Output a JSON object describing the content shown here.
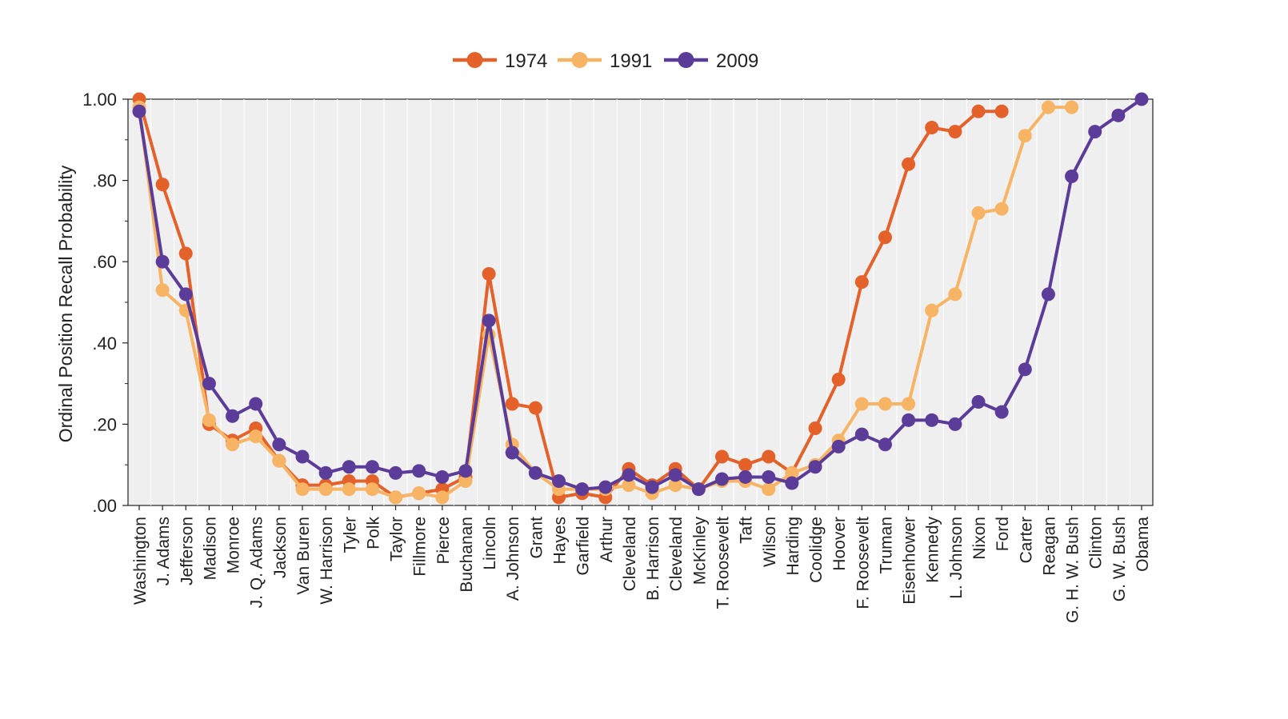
{
  "chart_data": {
    "type": "line",
    "title": "",
    "xlabel": "",
    "ylabel": "Ordinal Position Recall Probability",
    "ylim": [
      0,
      1
    ],
    "yticks": [
      {
        "value": 0,
        "label": ".00"
      },
      {
        "value": 0.2,
        "label": ".20"
      },
      {
        "value": 0.4,
        "label": ".40"
      },
      {
        "value": 0.6,
        "label": ".60"
      },
      {
        "value": 0.8,
        "label": ".80"
      },
      {
        "value": 1.0,
        "label": "1.00"
      }
    ],
    "grid": true,
    "legend_position": "top-center",
    "categories": [
      "Washington",
      "J. Adams",
      "Jefferson",
      "Madison",
      "Monroe",
      "J. Q. Adams",
      "Jackson",
      "Van Buren",
      "W. Harrison",
      "Tyler",
      "Polk",
      "Taylor",
      "Fillmore",
      "Pierce",
      "Buchanan",
      "Lincoln",
      "A. Johnson",
      "Grant",
      "Hayes",
      "Garfield",
      "Arthur",
      "Cleveland",
      "B. Harrison",
      "Cleveland",
      "McKinley",
      "T. Roosevelt",
      "Taft",
      "Wilson",
      "Harding",
      "Coolidge",
      "Hoover",
      "F. Roosevelt",
      "Truman",
      "Eisenhower",
      "Kennedy",
      "L. Johnson",
      "Nixon",
      "Ford",
      "Carter",
      "Reagan",
      "G. H. W. Bush",
      "Clinton",
      "G. W. Bush",
      "Obama"
    ],
    "series": [
      {
        "name": "1974",
        "color": "#e4612a",
        "values": [
          1.0,
          0.79,
          0.62,
          0.2,
          0.16,
          0.19,
          0.11,
          0.05,
          0.05,
          0.06,
          0.06,
          0.02,
          0.03,
          0.04,
          0.07,
          0.57,
          0.25,
          0.24,
          0.02,
          0.03,
          0.02,
          0.09,
          0.05,
          0.09,
          0.04,
          0.12,
          0.1,
          0.12,
          0.08,
          0.19,
          0.31,
          0.55,
          0.66,
          0.84,
          0.93,
          0.92,
          0.97,
          0.97,
          null,
          null,
          null,
          null,
          null,
          null
        ]
      },
      {
        "name": "1991",
        "color": "#f6b464",
        "values": [
          0.98,
          0.53,
          0.48,
          0.21,
          0.15,
          0.17,
          0.11,
          0.04,
          0.04,
          0.04,
          0.04,
          0.02,
          0.03,
          0.02,
          0.06,
          0.42,
          0.15,
          0.08,
          0.04,
          0.04,
          0.04,
          0.05,
          0.03,
          0.05,
          0.04,
          0.06,
          0.06,
          0.04,
          0.08,
          0.1,
          0.16,
          0.25,
          0.25,
          0.25,
          0.48,
          0.52,
          0.72,
          0.73,
          0.91,
          0.98,
          0.98,
          null,
          null,
          null
        ]
      },
      {
        "name": "2009",
        "color": "#5b3c99",
        "values": [
          0.97,
          0.6,
          0.52,
          0.3,
          0.22,
          0.25,
          0.15,
          0.12,
          0.08,
          0.095,
          0.095,
          0.08,
          0.085,
          0.07,
          0.085,
          0.455,
          0.13,
          0.08,
          0.06,
          0.04,
          0.045,
          0.075,
          0.045,
          0.075,
          0.04,
          0.065,
          0.07,
          0.07,
          0.055,
          0.095,
          0.145,
          0.175,
          0.15,
          0.21,
          0.21,
          0.2,
          0.255,
          0.23,
          0.335,
          0.52,
          0.81,
          0.92,
          0.96,
          1.0
        ]
      }
    ]
  }
}
